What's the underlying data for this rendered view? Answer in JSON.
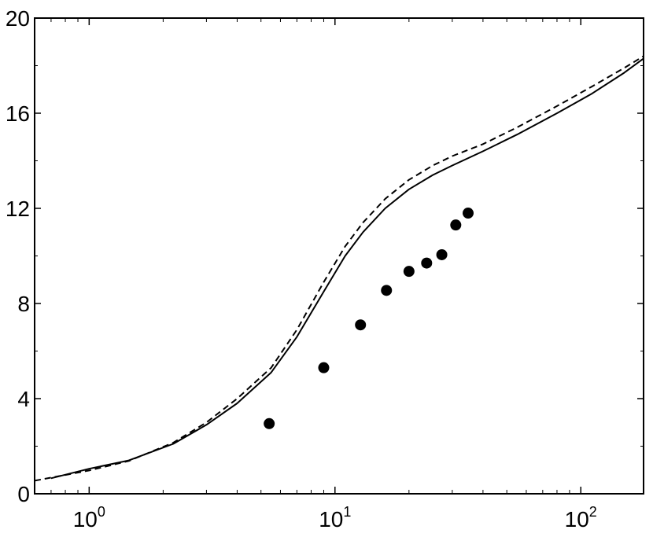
{
  "chart_data": {
    "type": "line",
    "title": "",
    "xlabel": "",
    "ylabel": "",
    "x_scale": "log",
    "xlim": [
      0.6,
      180
    ],
    "ylim": [
      0,
      20
    ],
    "grid": false,
    "legend": "none",
    "x_ticks": [
      {
        "base": "10",
        "exp": "0",
        "value": 1
      },
      {
        "base": "10",
        "exp": "1",
        "value": 10
      },
      {
        "base": "10",
        "exp": "2",
        "value": 100
      }
    ],
    "y_ticks": [
      {
        "label": "0",
        "value": 0
      },
      {
        "label": "4",
        "value": 4
      },
      {
        "label": "8",
        "value": 8
      },
      {
        "label": "12",
        "value": 12
      },
      {
        "label": "16",
        "value": 16
      },
      {
        "label": "20",
        "value": 20
      }
    ],
    "series": [
      {
        "style": "solid",
        "color": "#000000",
        "x": [
          0.7,
          1.0,
          1.45,
          2.2,
          3.0,
          4.0,
          5.5,
          7.0,
          9.0,
          11.0,
          13.0,
          16.0,
          20.0,
          25.0,
          30.0,
          40.0,
          55.0,
          80.0,
          110.0,
          150.0,
          180.0
        ],
        "y": [
          0.65,
          1.05,
          1.4,
          2.1,
          2.9,
          3.8,
          5.1,
          6.6,
          8.5,
          10.0,
          11.0,
          12.0,
          12.8,
          13.4,
          13.8,
          14.4,
          15.1,
          16.0,
          16.8,
          17.7,
          18.3
        ]
      },
      {
        "style": "dashed",
        "color": "#000000",
        "x": [
          0.6,
          1.0,
          1.45,
          2.2,
          3.0,
          4.0,
          5.5,
          7.0,
          9.0,
          11.0,
          13.0,
          16.0,
          20.0,
          25.0,
          30.0,
          40.0,
          55.0,
          80.0,
          110.0,
          150.0,
          180.0
        ],
        "y": [
          0.55,
          0.98,
          1.38,
          2.15,
          3.0,
          4.0,
          5.3,
          6.9,
          8.9,
          10.4,
          11.4,
          12.4,
          13.2,
          13.8,
          14.2,
          14.7,
          15.4,
          16.3,
          17.1,
          17.9,
          18.4
        ]
      },
      {
        "style": "markers",
        "color": "#000000",
        "x": [
          5.4,
          9.0,
          12.7,
          16.2,
          20.0,
          23.6,
          27.2,
          31.0,
          34.8
        ],
        "y": [
          2.95,
          5.3,
          7.1,
          8.55,
          9.35,
          9.7,
          10.05,
          11.3,
          11.8
        ]
      }
    ]
  }
}
